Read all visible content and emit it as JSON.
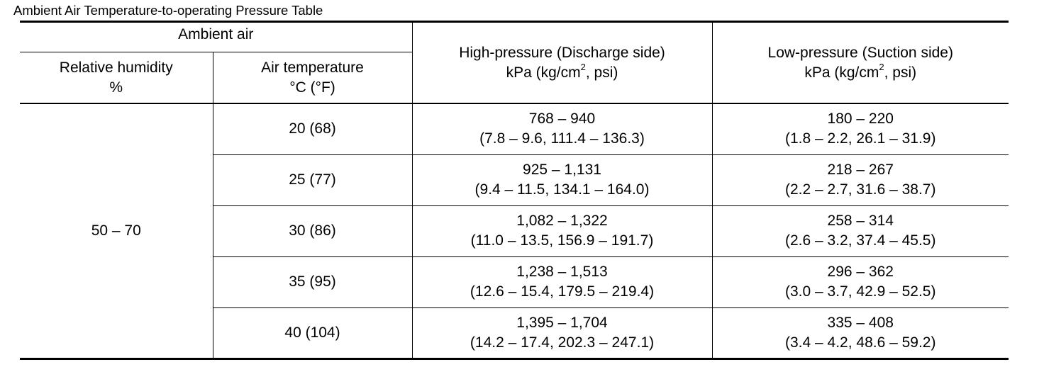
{
  "caption": "Ambient Air Temperature-to-operating Pressure Table",
  "header": {
    "ambient_air": "Ambient air",
    "relative_humidity_line1": "Relative humidity",
    "relative_humidity_line2": "%",
    "air_temperature_line1": "Air temperature",
    "air_temperature_line2": "°C (°F)",
    "high_pressure_line1": "High-pressure (Discharge side)",
    "high_pressure_unit_pre": "kPa (kg/cm",
    "high_pressure_unit_sup": "2",
    "high_pressure_unit_post": ", psi)",
    "low_pressure_line1": "Low-pressure (Suction side)",
    "low_pressure_unit_pre": "kPa (kg/cm",
    "low_pressure_unit_sup": "2",
    "low_pressure_unit_post": ", psi)"
  },
  "relative_humidity": "50 – 70",
  "rows": [
    {
      "air_temp": "20 (68)",
      "high_kpa": "768 – 940",
      "high_other": "(7.8 – 9.6, 111.4 – 136.3)",
      "low_kpa": "180 – 220",
      "low_other": "(1.8 – 2.2, 26.1 – 31.9)"
    },
    {
      "air_temp": "25 (77)",
      "high_kpa": "925 – 1,131",
      "high_other": "(9.4 – 11.5, 134.1 – 164.0)",
      "low_kpa": "218 – 267",
      "low_other": "(2.2 – 2.7, 31.6 – 38.7)"
    },
    {
      "air_temp": "30 (86)",
      "high_kpa": "1,082 – 1,322",
      "high_other": "(11.0 – 13.5, 156.9 – 191.7)",
      "low_kpa": "258 – 314",
      "low_other": "(2.6 – 3.2, 37.4 – 45.5)"
    },
    {
      "air_temp": "35 (95)",
      "high_kpa": "1,238 – 1,513",
      "high_other": "(12.6 – 15.4, 179.5 – 219.4)",
      "low_kpa": "296 – 362",
      "low_other": "(3.0 – 3.7, 42.9 – 52.5)"
    },
    {
      "air_temp": "40 (104)",
      "high_kpa": "1,395 – 1,704",
      "high_other": "(14.2 – 17.4, 202.3 – 247.1)",
      "low_kpa": "335 – 408",
      "low_other": "(3.4 – 4.2, 48.6 – 59.2)"
    }
  ]
}
